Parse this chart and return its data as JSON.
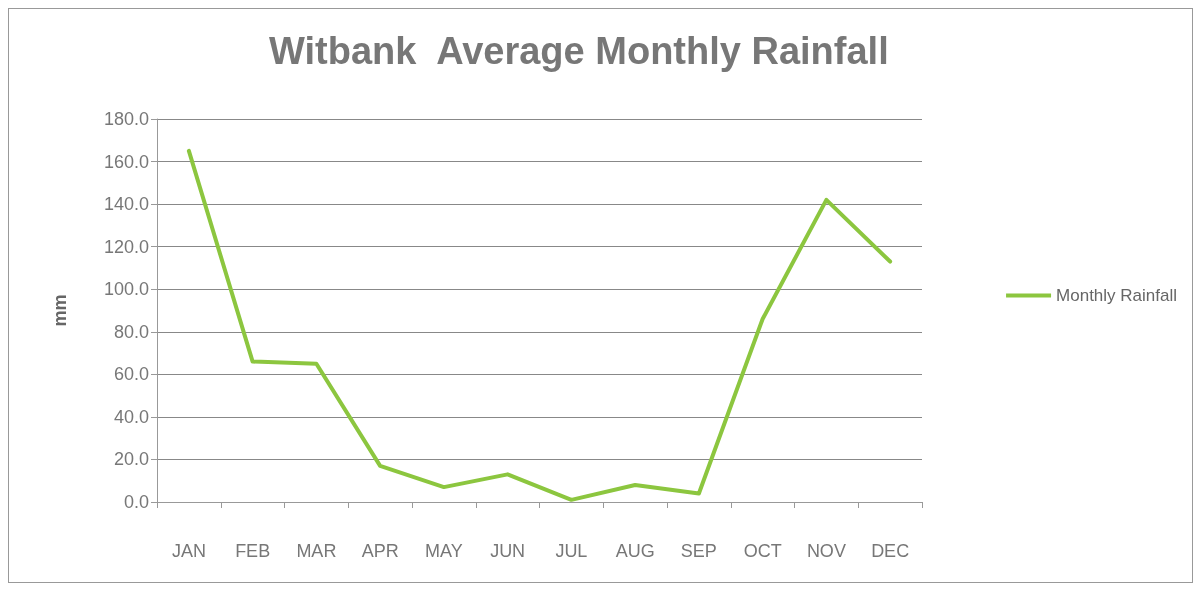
{
  "chart_data": {
    "type": "line",
    "title": "Witbank  Average Monthly Rainfall",
    "ylabel": "mm",
    "categories": [
      "JAN",
      "FEB",
      "MAR",
      "APR",
      "MAY",
      "JUN",
      "JUL",
      "AUG",
      "SEP",
      "OCT",
      "NOV",
      "DEC"
    ],
    "series": [
      {
        "name": "Monthly Rainfall",
        "color": "#8cc63f",
        "values": [
          165,
          66,
          65,
          17,
          7,
          13,
          1,
          8,
          4,
          86,
          142,
          113
        ]
      }
    ],
    "ylim": [
      0,
      180
    ],
    "yticks": [
      {
        "value": 0,
        "label": "0.0"
      },
      {
        "value": 20,
        "label": "20.0"
      },
      {
        "value": 40,
        "label": "40.0"
      },
      {
        "value": 60,
        "label": "60.0"
      },
      {
        "value": 80,
        "label": "80.0"
      },
      {
        "value": 100,
        "label": "100.0"
      },
      {
        "value": 120,
        "label": "120.0"
      },
      {
        "value": 140,
        "label": "140.0"
      },
      {
        "value": 160,
        "label": "160.0"
      },
      {
        "value": 180,
        "label": "180.0"
      }
    ],
    "grid": "y",
    "legend": "right",
    "marker": "none",
    "line_style": "solid"
  }
}
